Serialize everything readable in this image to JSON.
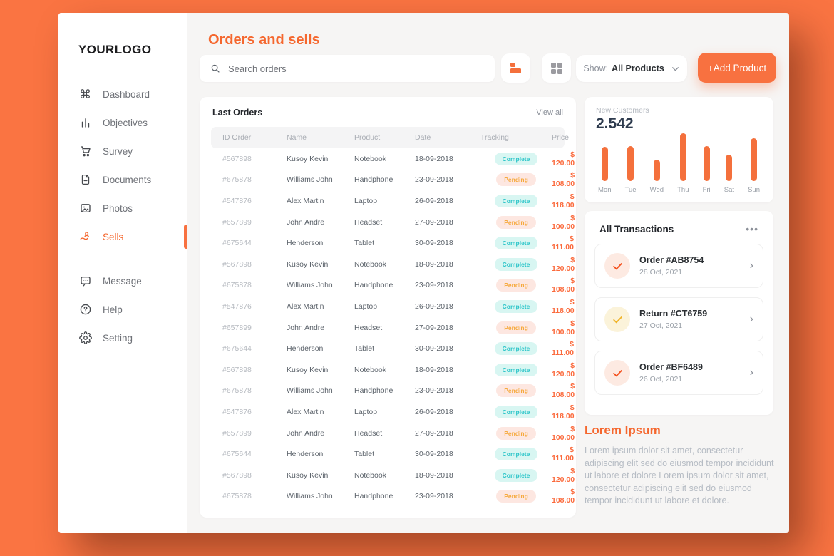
{
  "colors": {
    "frame": "#fa7442",
    "accent": "#f87140",
    "heading_orange": "#f5672e",
    "price_orange": "#fb6a3c",
    "bar_orange": "#f4703c",
    "complete_bg": "#d8f6f2",
    "complete_text": "#2cc5c9",
    "pending_bg": "#fde7e1",
    "pending_text": "#f6a93c",
    "dark_navy": "#2e3b4e"
  },
  "sidebar": {
    "logo": "YOURLOGO",
    "items": [
      {
        "label": "Dashboard",
        "icon": "dashboard-icon",
        "active": false,
        "group": 1
      },
      {
        "label": "Objectives",
        "icon": "objectives-icon",
        "active": false,
        "group": 1
      },
      {
        "label": "Survey",
        "icon": "survey-cart-icon",
        "active": false,
        "group": 1
      },
      {
        "label": "Documents",
        "icon": "documents-icon",
        "active": false,
        "group": 1
      },
      {
        "label": "Photos",
        "icon": "photos-icon",
        "active": false,
        "group": 1
      },
      {
        "label": "Sells",
        "icon": "sells-icon",
        "active": true,
        "group": 1
      },
      {
        "label": "Message",
        "icon": "message-icon",
        "active": false,
        "group": 2
      },
      {
        "label": "Help",
        "icon": "help-icon",
        "active": false,
        "group": 2
      },
      {
        "label": "Setting",
        "icon": "setting-icon",
        "active": false,
        "group": 2
      }
    ]
  },
  "header": {
    "title": "Orders and sells",
    "search_placeholder": "Search orders",
    "view_buttons": [
      "list-view-icon",
      "grid-view-icon"
    ],
    "show_label": "Show:",
    "show_value": "All Products",
    "add_button": "+Add Product"
  },
  "orders": {
    "title": "Last Orders",
    "view_all": "View all",
    "columns": [
      "ID Order",
      "Name",
      "Product",
      "Date",
      "Tracking",
      "Price"
    ],
    "rows": [
      {
        "id": "#567898",
        "name": "Kusoy Kevin",
        "product": "Notebook",
        "date": "18-09-2018",
        "status": "complete",
        "status_label": "Complete",
        "price": "$ 120.00"
      },
      {
        "id": "#675878",
        "name": "Williams John",
        "product": "Handphone",
        "date": "23-09-2018",
        "status": "pending",
        "status_label": "Pending",
        "price": "$ 108.00"
      },
      {
        "id": "#547876",
        "name": "Alex Martin",
        "product": "Laptop",
        "date": "26-09-2018",
        "status": "complete",
        "status_label": "Complete",
        "price": "$ 118.00"
      },
      {
        "id": "#657899",
        "name": "John Andre",
        "product": "Headset",
        "date": "27-09-2018",
        "status": "pending",
        "status_label": "Pending",
        "price": "$ 100.00"
      },
      {
        "id": "#675644",
        "name": "Henderson",
        "product": "Tablet",
        "date": "30-09-2018",
        "status": "complete",
        "status_label": "Complete",
        "price": "$ 111.00"
      },
      {
        "id": "#567898",
        "name": "Kusoy Kevin",
        "product": "Notebook",
        "date": "18-09-2018",
        "status": "complete",
        "status_label": "Complete",
        "price": "$ 120.00"
      },
      {
        "id": "#675878",
        "name": "Williams John",
        "product": "Handphone",
        "date": "23-09-2018",
        "status": "pending",
        "status_label": "Pending",
        "price": "$ 108.00"
      },
      {
        "id": "#547876",
        "name": "Alex Martin",
        "product": "Laptop",
        "date": "26-09-2018",
        "status": "complete",
        "status_label": "Complete",
        "price": "$ 118.00"
      },
      {
        "id": "#657899",
        "name": "John Andre",
        "product": "Headset",
        "date": "27-09-2018",
        "status": "pending",
        "status_label": "Pending",
        "price": "$ 100.00"
      },
      {
        "id": "#675644",
        "name": "Henderson",
        "product": "Tablet",
        "date": "30-09-2018",
        "status": "complete",
        "status_label": "Complete",
        "price": "$ 111.00"
      },
      {
        "id": "#567898",
        "name": "Kusoy Kevin",
        "product": "Notebook",
        "date": "18-09-2018",
        "status": "complete",
        "status_label": "Complete",
        "price": "$ 120.00"
      },
      {
        "id": "#675878",
        "name": "Williams John",
        "product": "Handphone",
        "date": "23-09-2018",
        "status": "pending",
        "status_label": "Pending",
        "price": "$ 108.00"
      },
      {
        "id": "#547876",
        "name": "Alex Martin",
        "product": "Laptop",
        "date": "26-09-2018",
        "status": "complete",
        "status_label": "Complete",
        "price": "$ 118.00"
      },
      {
        "id": "#657899",
        "name": "John Andre",
        "product": "Headset",
        "date": "27-09-2018",
        "status": "pending",
        "status_label": "Pending",
        "price": "$ 100.00"
      },
      {
        "id": "#675644",
        "name": "Henderson",
        "product": "Tablet",
        "date": "30-09-2018",
        "status": "complete",
        "status_label": "Complete",
        "price": "$ 111.00"
      },
      {
        "id": "#567898",
        "name": "Kusoy Kevin",
        "product": "Notebook",
        "date": "18-09-2018",
        "status": "complete",
        "status_label": "Complete",
        "price": "$ 120.00"
      },
      {
        "id": "#675878",
        "name": "Williams John",
        "product": "Handphone",
        "date": "23-09-2018",
        "status": "pending",
        "status_label": "Pending",
        "price": "$ 108.00"
      }
    ]
  },
  "customers": {
    "label": "New Customers",
    "value": "2.542"
  },
  "chart_data": {
    "type": "bar",
    "title": "New Customers",
    "categories": [
      "Mon",
      "Tue",
      "Wed",
      "Thu",
      "Fri",
      "Sat",
      "Sun"
    ],
    "values": [
      72,
      73,
      45,
      100,
      73,
      55,
      90
    ],
    "xlabel": "",
    "ylabel": "",
    "ylim": [
      0,
      100
    ],
    "grid": false,
    "legend": false,
    "bar_color": "#f4703c",
    "note": "values are relative bar heights (max day Thu = 100); no numeric axis shown in source"
  },
  "transactions": {
    "title": "All Transactions",
    "menu_icon": "ellipsis-icon",
    "items": [
      {
        "title": "Order #AB8754",
        "date": "28 Oct, 2021",
        "status": "order"
      },
      {
        "title": "Return #CT6759",
        "date": "27 Oct, 2021",
        "status": "return"
      },
      {
        "title": "Order #BF6489",
        "date": "26 Oct, 2021",
        "status": "order"
      }
    ]
  },
  "lorem": {
    "title": "Lorem Ipsum",
    "body": "Lorem ipsum dolor sit amet, consectetur adipiscing elit sed do eiusmod tempor incididunt ut labore et dolore Lorem ipsum dolor sit amet, consectetur adipiscing elit sed do eiusmod tempor incididunt ut labore et dolore."
  }
}
